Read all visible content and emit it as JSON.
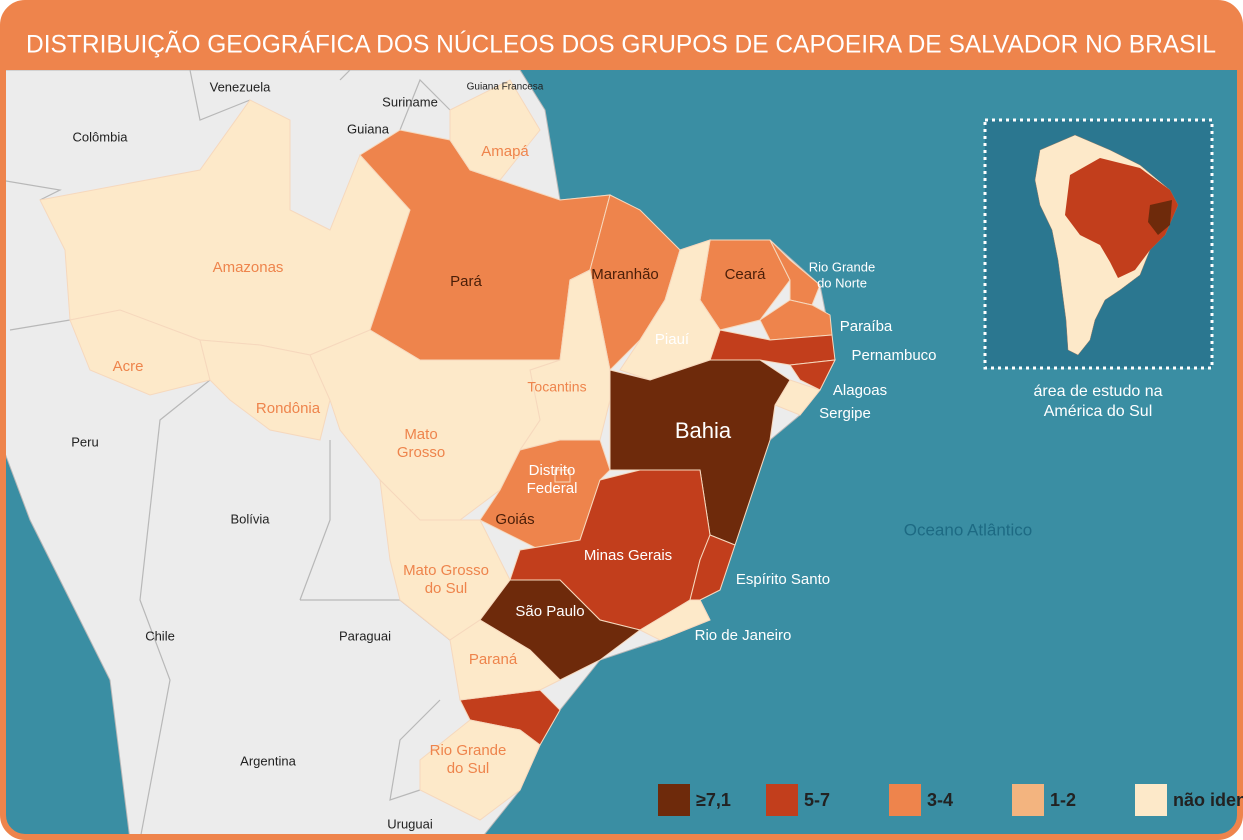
{
  "title": "DISTRIBUIÇÃO GEOGRÁFICA DOS NÚCLEOS DOS GRUPOS DE CAPOEIRA DE SALVADOR NO BRASIL",
  "legend": [
    {
      "label": "≥7,1",
      "color": "#6e2a0b"
    },
    {
      "label": "5-7",
      "color": "#c23e1c"
    },
    {
      "label": "3-4",
      "color": "#ee844c"
    },
    {
      "label": "1-2",
      "color": "#f3b47f"
    },
    {
      "label": "não identificados",
      "color": "#fde9c9"
    }
  ],
  "states": [
    {
      "label_lines": [
        "Amazonas"
      ],
      "class": 4
    },
    {
      "label_lines": [
        "Pará"
      ],
      "class": 2
    },
    {
      "label_lines": [
        "Amapá"
      ],
      "class": 4
    },
    {
      "label_lines": [
        "Maranhão"
      ],
      "class": 2
    },
    {
      "label_lines": [
        "Ceará"
      ],
      "class": 2
    },
    {
      "label_lines": [
        "Rio Grande",
        "do Norte"
      ],
      "class": 2
    },
    {
      "label_lines": [
        "Paraíba"
      ],
      "class": 2
    },
    {
      "label_lines": [
        "Pernambuco"
      ],
      "class": 1
    },
    {
      "label_lines": [
        "Alagoas"
      ],
      "class": 1
    },
    {
      "label_lines": [
        "Sergipe"
      ],
      "class": 4
    },
    {
      "label_lines": [
        "Piauí"
      ],
      "class": 4
    },
    {
      "label_lines": [
        "Tocantins"
      ],
      "class": 4
    },
    {
      "label_lines": [
        "Bahia"
      ],
      "class": 0
    },
    {
      "label_lines": [
        "Acre"
      ],
      "class": 4
    },
    {
      "label_lines": [
        "Rondônia"
      ],
      "class": 4
    },
    {
      "label_lines": [
        "Mato",
        "Grosso"
      ],
      "class": 4
    },
    {
      "label_lines": [
        "Goiás"
      ],
      "class": 2
    },
    {
      "label_lines": [
        "Distrito",
        "Federal"
      ],
      "class": 2
    },
    {
      "label_lines": [
        "Minas Gerais"
      ],
      "class": 1
    },
    {
      "label_lines": [
        "Espírito Santo"
      ],
      "class": 1
    },
    {
      "label_lines": [
        "Mato Grosso",
        "do Sul"
      ],
      "class": 4
    },
    {
      "label_lines": [
        "São Paulo"
      ],
      "class": 0
    },
    {
      "label_lines": [
        "Rio de Janeiro"
      ],
      "class": 4
    },
    {
      "label_lines": [
        "Paraná"
      ],
      "class": 4
    },
    {
      "label_lines": [
        "Rio Grande",
        "do Sul"
      ],
      "class": 4
    }
  ],
  "countries": [
    "Venezuela",
    "Suriname",
    "Guiana Francesa",
    "Guiana",
    "Colômbia",
    "Peru",
    "Bolívia",
    "Chile",
    "Paraguai",
    "Argentina",
    "Uruguai"
  ],
  "ocean_label": "Oceano Atlântico",
  "inset_caption": [
    "área de estudo na",
    "América do Sul"
  ]
}
